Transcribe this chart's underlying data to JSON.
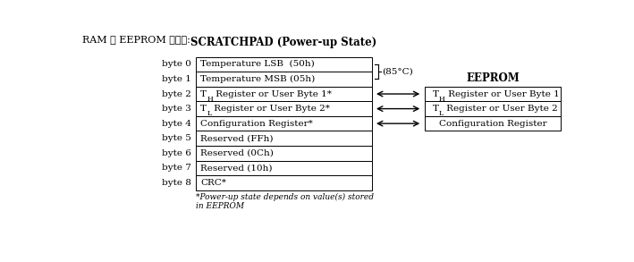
{
  "title": "RAM 及 EEPROM 结构图:",
  "scratchpad_title": "SCRATCHPAD (Power-up State)",
  "eeprom_title": "EEPROM",
  "footnote": "*Power-up state depends on value(s) stored\nin EEPROM",
  "brace_label": "(85°C)",
  "scratchpad_rows": [
    {
      "byte": "byte 0",
      "label": "Temperature LSB  (50h)",
      "sub": null
    },
    {
      "byte": "byte 1",
      "label": "Temperature MSB (05h)",
      "sub": null
    },
    {
      "byte": "byte 2",
      "label_pre": "T",
      "label_sub": "H",
      "label_post": " Register or User Byte 1*",
      "sub": "H"
    },
    {
      "byte": "byte 3",
      "label_pre": "T",
      "label_sub": "L",
      "label_post": " Register or User Byte 2*",
      "sub": "L"
    },
    {
      "byte": "byte 4",
      "label": "Configuration Register*",
      "sub": null
    },
    {
      "byte": "byte 5",
      "label": "Reserved (FFh)",
      "sub": null
    },
    {
      "byte": "byte 6",
      "label": "Reserved (0Ch)",
      "sub": null
    },
    {
      "byte": "byte 7",
      "label": "Reserved (10h)",
      "sub": null
    },
    {
      "byte": "byte 8",
      "label": "CRC*",
      "sub": null
    }
  ],
  "eeprom_rows": [
    {
      "label_pre": "T",
      "label_sub": "H",
      "label_post": " Register or User Byte 1"
    },
    {
      "label_pre": "T",
      "label_sub": "L",
      "label_post": " Register or User Byte 2"
    },
    {
      "label": "Configuration Register"
    }
  ],
  "arrow_rows": [
    2,
    3,
    4
  ],
  "bg_color": "#ffffff",
  "box_edge_color": "#000000",
  "text_color": "#000000"
}
